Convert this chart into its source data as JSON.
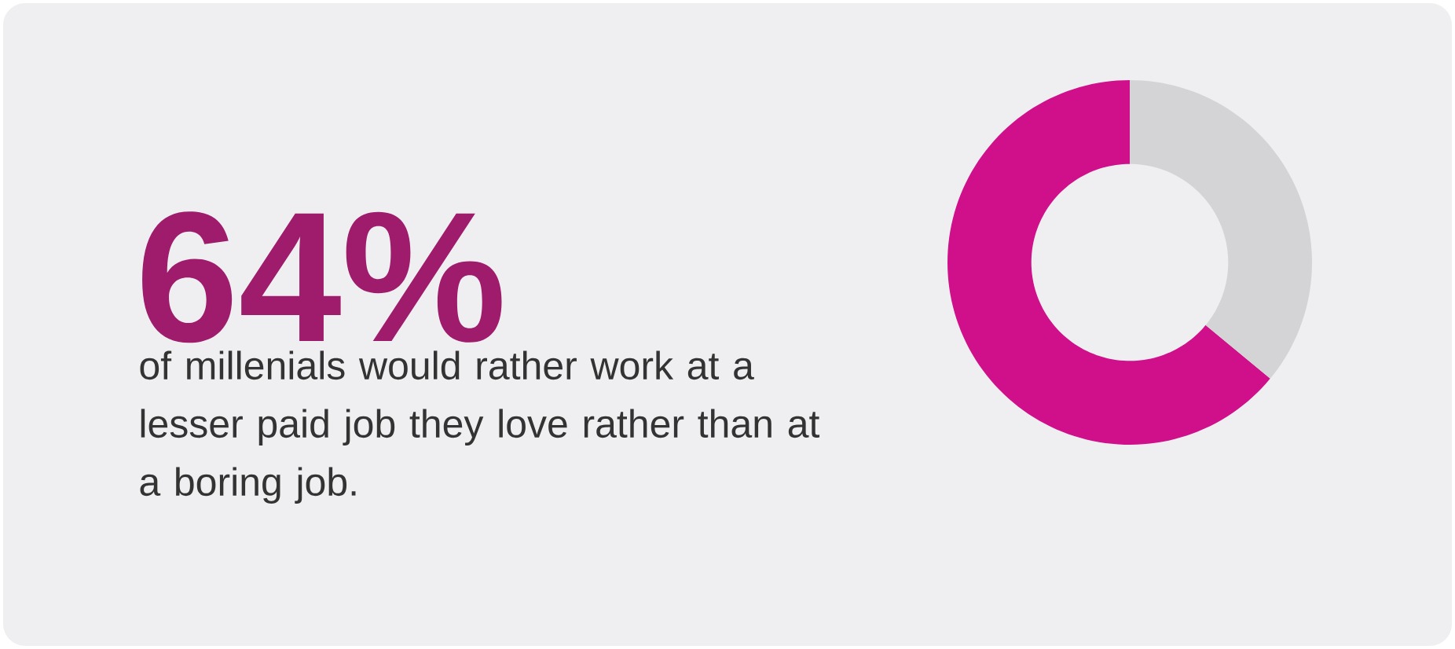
{
  "chart_data": {
    "type": "donut",
    "title": "64%",
    "categories": [
      null,
      null
    ],
    "values": [
      64,
      36
    ],
    "colors": [
      "#d0108a",
      "#d4d4d6"
    ],
    "annotations": [
      "of millenials would rather work at a lesser paid job they love rather than at a boring job."
    ]
  }
}
